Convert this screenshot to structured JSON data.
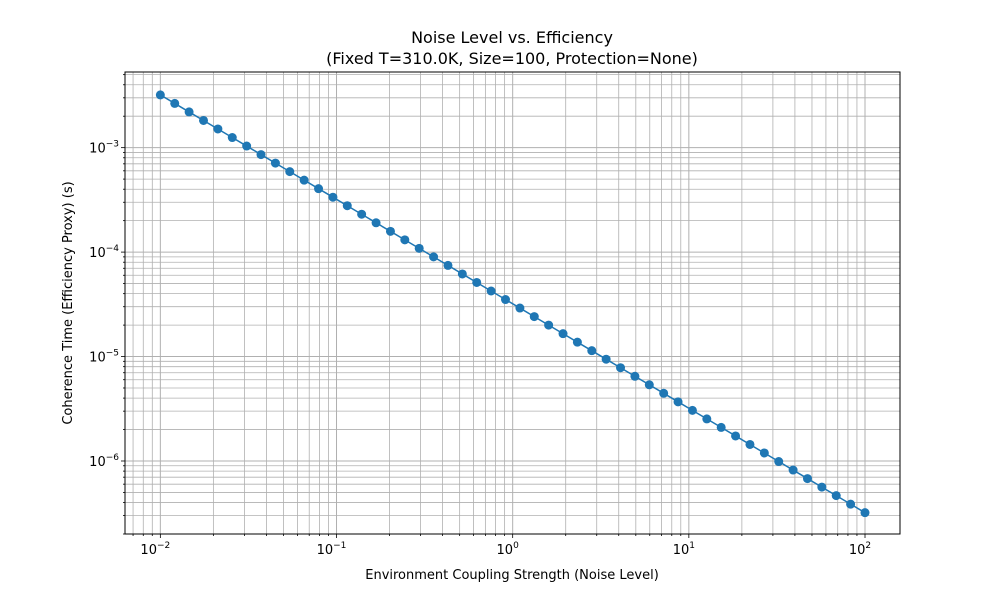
{
  "chart_data": {
    "type": "line",
    "title": "Noise Level vs. Efficiency",
    "subtitle": "(Fixed T=310.0K, Size=100, Protection=None)",
    "xlabel": "Environment Coupling Strength (Noise Level)",
    "ylabel": "Coherence Time (Efficiency Proxy) (s)",
    "xscale": "log",
    "yscale": "log",
    "xlim": [
      0.0063,
      158
    ],
    "ylim": [
      2e-07,
      0.0053
    ],
    "x_ticks": [
      {
        "value": 0.01,
        "base": "10",
        "exp": "−2"
      },
      {
        "value": 0.1,
        "base": "10",
        "exp": "−1"
      },
      {
        "value": 1,
        "base": "10",
        "exp": "0"
      },
      {
        "value": 10,
        "base": "10",
        "exp": "1"
      },
      {
        "value": 100,
        "base": "10",
        "exp": "2"
      }
    ],
    "y_ticks": [
      {
        "value": 1e-06,
        "base": "10",
        "exp": "−6"
      },
      {
        "value": 1e-05,
        "base": "10",
        "exp": "−5"
      },
      {
        "value": 0.0001,
        "base": "10",
        "exp": "−4"
      },
      {
        "value": 0.001,
        "base": "10",
        "exp": "−3"
      }
    ],
    "grid": "major and minor",
    "marker": "circle",
    "color": "#1f77b4",
    "series": [
      {
        "x": [
          0.01,
          0.01207,
          0.01456,
          0.01758,
          0.02121,
          0.0256,
          0.0309,
          0.03728,
          0.045,
          0.05429,
          0.06551,
          0.07906,
          0.09541,
          0.1151,
          0.1389,
          0.1677,
          0.2024,
          0.2442,
          0.2947,
          0.3556,
          0.4292,
          0.5179,
          0.625,
          0.7543,
          0.9103,
          1.099,
          1.326,
          1.6,
          1.931,
          2.33,
          2.812,
          3.393,
          4.095,
          4.942,
          5.964,
          7.197,
          8.685,
          10.48,
          12.65,
          15.26,
          18.42,
          22.23,
          26.83,
          32.37,
          39.07,
          47.15,
          56.9,
          68.66,
          82.86,
          100
        ],
        "y": [
          0.0032,
          0.002651,
          0.002198,
          0.00182,
          0.001509,
          0.00125,
          0.001036,
          0.0008584,
          0.0007111,
          0.0005894,
          0.0004885,
          0.0004048,
          0.0003354,
          0.000278,
          0.0002304,
          0.0001908,
          0.0001581,
          0.000131,
          0.0001086,
          9e-05,
          7.456e-05,
          6.179e-05,
          5.12e-05,
          4.242e-05,
          3.515e-05,
          2.912e-05,
          2.413e-05,
          2e-05,
          1.657e-05,
          1.373e-05,
          1.138e-05,
          9.431e-06,
          7.814e-06,
          6.475e-06,
          5.365e-06,
          4.446e-06,
          3.685e-06,
          3.053e-06,
          2.53e-06,
          2.097e-06,
          1.737e-06,
          1.439e-06,
          1.193e-06,
          9.886e-07,
          8.19e-07,
          6.787e-07,
          5.624e-07,
          4.66e-07,
          3.862e-07,
          3.2e-07
        ]
      }
    ]
  }
}
